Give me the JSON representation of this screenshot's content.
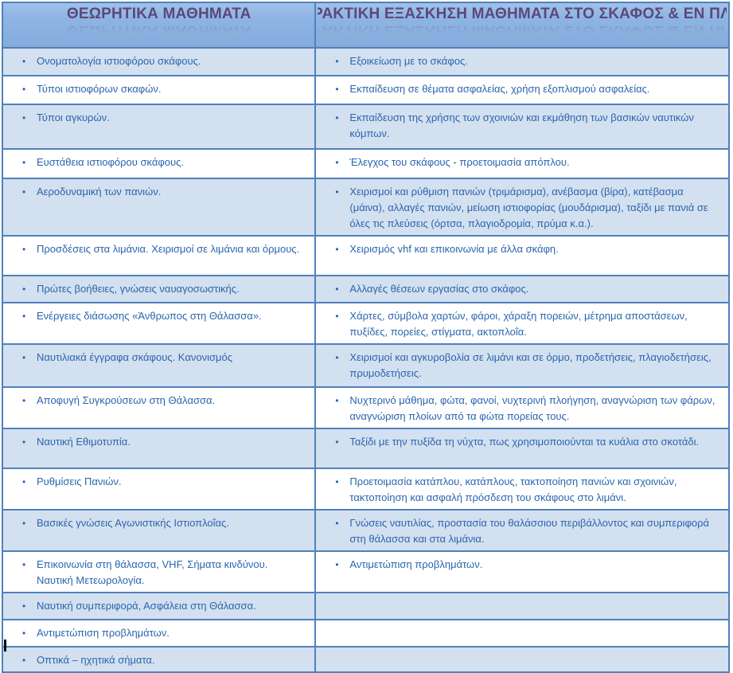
{
  "table": {
    "headers": [
      "ΘΕΩΡΗΤΙΚΑ ΜΑΘΗΜΑΤΑ",
      "ΠΡΑΚΤΙΚΗ ΕΞΑΣΚΗΣΗ ΜΑΘΗΜΑΤΑ ΣΤΟ ΣΚΑΦΟΣ & ΕΝ ΠΛΩ"
    ],
    "rows": [
      {
        "left": "Ονοματολογία ιστιοφόρου σκάφους.",
        "right": "Εξοικείωση με το σκάφος."
      },
      {
        "left": "Τύποι ιστιοφόρων σκαφών.",
        "right": "Εκπαίδευση σε θέματα ασφαλείας, χρήση εξοπλισμού ασφαλείας."
      },
      {
        "left": "Τύποι αγκυρών.",
        "right": "Εκπαίδευση της χρήσης των σχοινιών και εκμάθηση των βασικών ναυτικών κόμπων."
      },
      {
        "left": "Ευστάθεια ιστιοφόρου σκάφους.",
        "right": "Έλεγχος του σκάφους - προετοιμασία απόπλου."
      },
      {
        "left": "Αεροδυναμική των πανιών.",
        "right": "Χειρισμοί και ρύθμιση πανιών (τριμάρισμα), ανέβασμα (βίρα), κατέβασμα (μάινα), αλλαγές πανιών, μείωση ιστιοφορίας (μουδάρισμα), ταξίδι με πανιά σε όλες τις πλεύσεις (όρτσα, πλαγιοδρομία, πρύμα κ.α.)."
      },
      {
        "left": "Προσδέσεις στα λιμάνια. Χειρισμοί σε λιμάνια και όρμους.",
        "right": "Χειρισμός vhf και επικοινωνία με άλλα σκάφη."
      },
      {
        "left": "Πρώτες βοήθειες, γνώσεις ναυαγοσωστικής.",
        "right": "Αλλαγές θέσεων εργασίας στο σκάφος."
      },
      {
        "left": "Ενέργειες διάσωσης «Άνθρωπος στη Θάλασσα».",
        "right": "Χάρτες, σύμβολα χαρτών, φάροι, χάραξη πορειών, μέτρημα αποστάσεων, πυξίδες, πορείες, στίγματα, ακτοπλοΐα."
      },
      {
        "left": "Ναυτιλιακά έγγραφα σκάφους. Κανονισμός",
        "right": "Χειρισμοί και αγκυροβολία σε λιμάνι και σε όρμο, προδετήσεις, πλαγιοδετήσεις, πρυμοδετήσεις."
      },
      {
        "left": "Αποφυγή Συγκρούσεων στη Θάλασσα.",
        "right": "Νυχτερινό μάθημα, φώτα, φανοί, νυχτερινή πλοήγηση, αναγνώριση των φάρων, αναγνώριση πλοίων από τα φώτα πορείας τους."
      },
      {
        "left": "Ναυτική Εθιμοτυπία.",
        "right": "Ταξίδι με την πυξίδα τη νύχτα, πως χρησιμοποιούνται τα κυάλια στο σκοτάδι."
      },
      {
        "left": "Ρυθμίσεις Πανιών.",
        "right": "Προετοιμασία κατάπλου, κατάπλους, τακτοποίηση πανιών και σχοινιών, τακτοποίηση και ασφαλή πρόσδεση του σκάφους στο λιμάνι."
      },
      {
        "left": "Βασικές γνώσεις Αγωνιστικής Ιστιοπλοΐας.",
        "right": "Γνώσεις ναυτιλίας, προστασία του θαλάσσιου περιβάλλοντος και συμπεριφορά στη θάλασσα και στα λιμάνια."
      },
      {
        "left": "Επικοινωνία στη θάλασσα, VHF, Σήματα κινδύνου. Ναυτική Μετεωρολογία.",
        "right": "Αντιμετώπιση προβλημάτων."
      },
      {
        "left": "Ναυτική συμπεριφορά, Ασφάλεια στη Θάλασσα.",
        "right": ""
      },
      {
        "left": "Αντιμετώπιση προβλημάτων.",
        "right": ""
      },
      {
        "left": "Οπτικά – ηχητικά σήματα.",
        "right": ""
      }
    ]
  },
  "icons": {
    "bullet": "•"
  },
  "colors": {
    "header_bg": "#8DB4E2",
    "header_text": "#5B4977",
    "border": "#4F81BD",
    "row_alt_bg": "#D3E0F0",
    "row_bg": "#FFFFFF",
    "body_text": "#2A65AD",
    "cursor": "#000000"
  }
}
